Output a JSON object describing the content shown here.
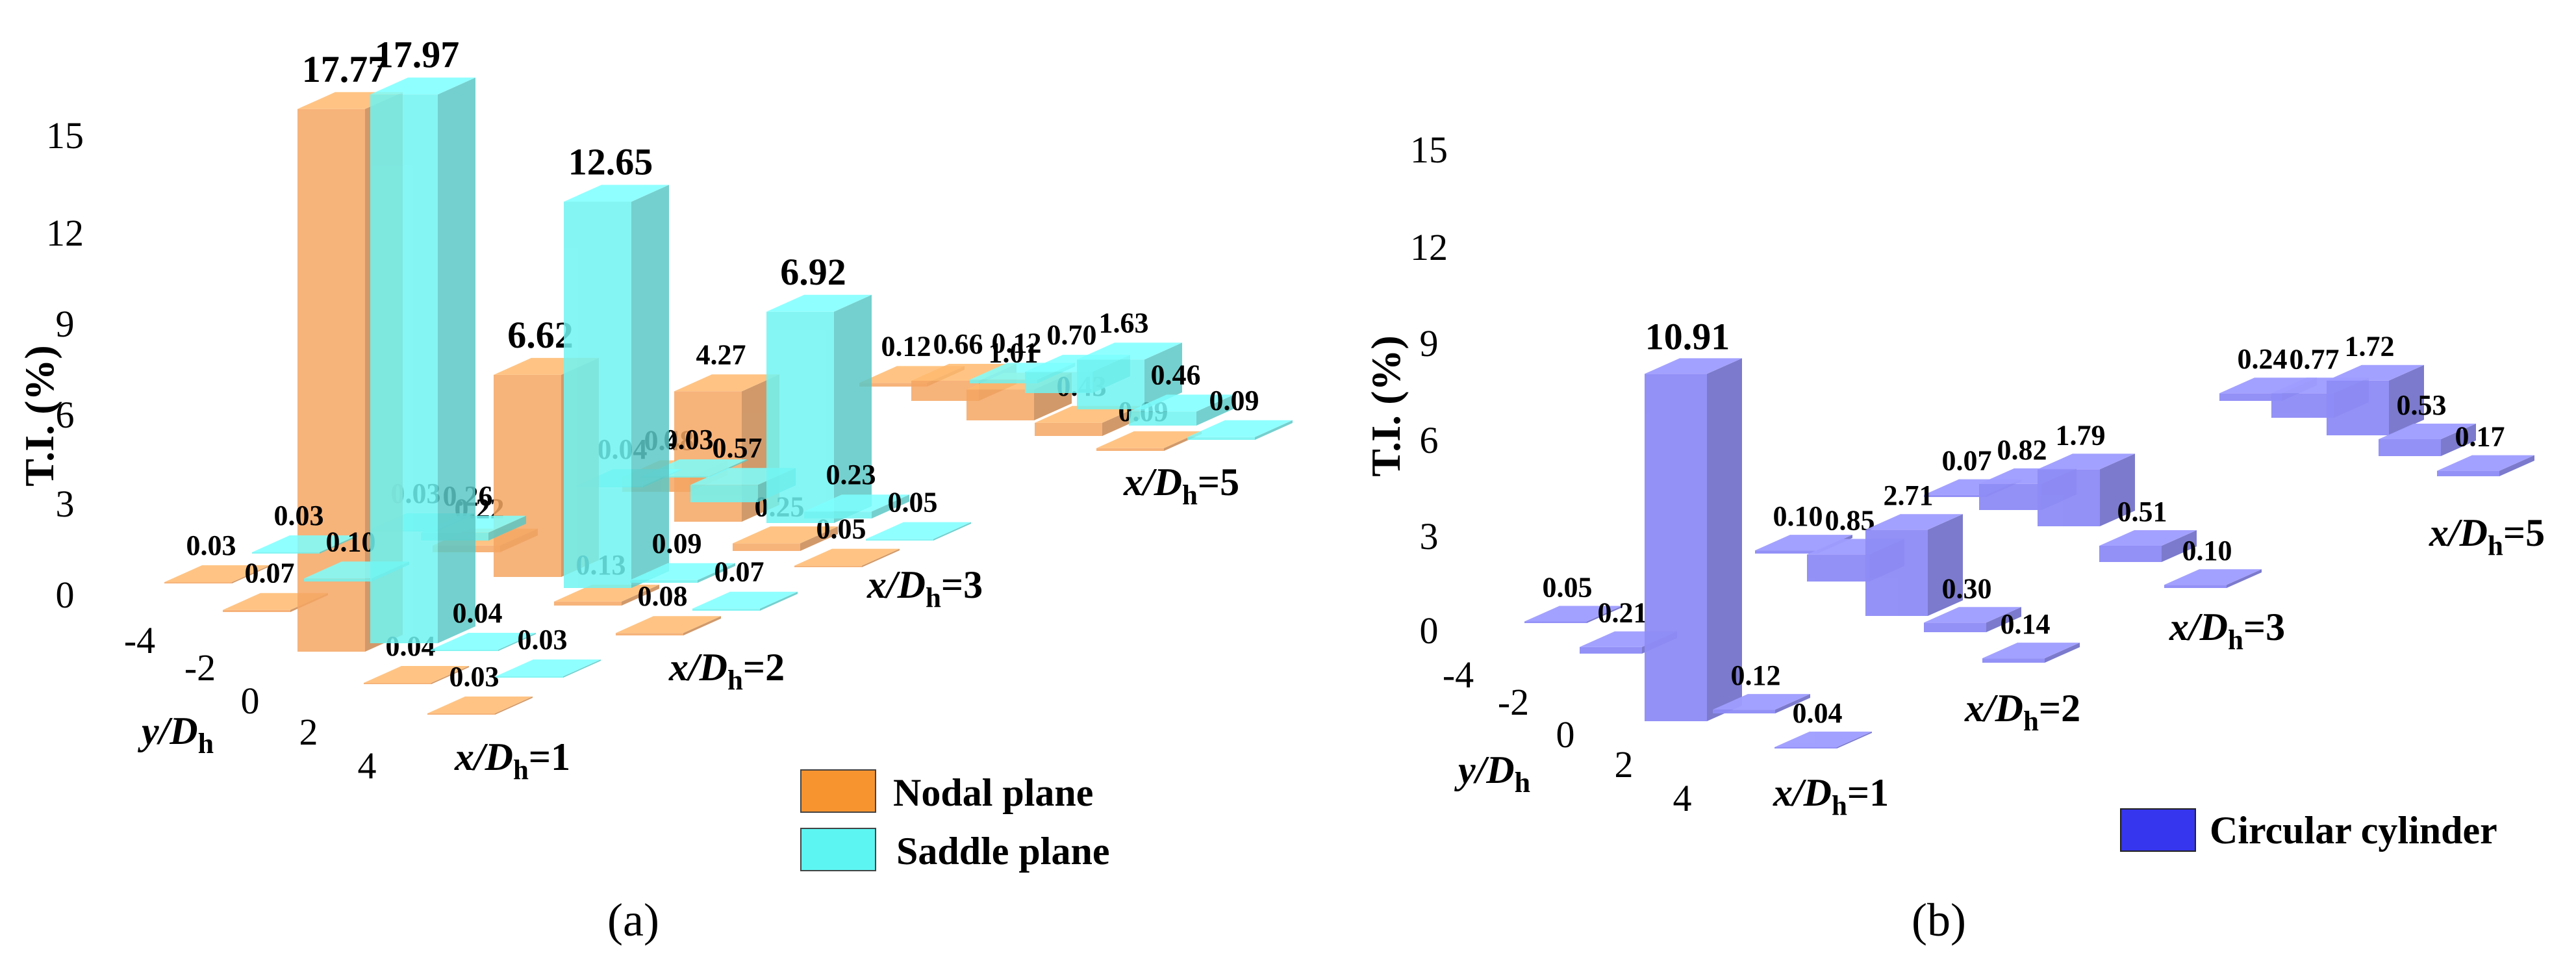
{
  "colors": {
    "nodal": "#f5a663",
    "saddle": "#70f4f2",
    "circular": "#8e8cf6",
    "legend_nodal": "#f7942f",
    "legend_saddle": "#5df5f2",
    "legend_circular": "#3636ee"
  },
  "chart_data": [
    {
      "type": "bar",
      "subtitle": "(a)",
      "zlabel": "T.I. (%)",
      "zticks": [
        "0",
        "3",
        "6",
        "9",
        "12",
        "15"
      ],
      "ylabel_prefix": "y/D",
      "ylabel_sub": "h",
      "yticks": [
        "-4",
        "-2",
        "0",
        "2",
        "4"
      ],
      "group_labels": [
        {
          "prefix": "x/D",
          "sub": "h",
          "suffix": "=1"
        },
        {
          "prefix": "x/D",
          "sub": "h",
          "suffix": "=2"
        },
        {
          "prefix": "x/D",
          "sub": "h",
          "suffix": "=3"
        },
        {
          "prefix": "x/D",
          "sub": "h",
          "suffix": "=5"
        }
      ],
      "legend": [
        "Nodal plane",
        "Saddle plane"
      ],
      "series": [
        {
          "name": "Nodal plane",
          "groups": [
            {
              "x": 1,
              "values": [
                "0.03",
                "0.07",
                "17.77",
                "0.04",
                "0.03"
              ]
            },
            {
              "x": 2,
              "values": [
                "0.22",
                "6.62",
                "0.13",
                "0.08"
              ]
            },
            {
              "x": 3,
              "values": [
                "0.48",
                "4.27",
                "0.25",
                "0.05"
              ]
            },
            {
              "x": 5,
              "values": [
                "0.12",
                "0.66",
                "1.01",
                "0.43",
                "0.09"
              ]
            }
          ]
        },
        {
          "name": "Saddle plane",
          "groups": [
            {
              "x": 1,
              "values": [
                "0.03",
                "0.10",
                "17.97",
                "0.04",
                "0.03"
              ]
            },
            {
              "x": 2,
              "values": [
                "0.03",
                "0.26",
                "12.65",
                "0.09",
                "0.07"
              ]
            },
            {
              "x": 3,
              "values": [
                "0.04",
                "0.03",
                "0.57",
                "6.92",
                "0.23",
                "0.05"
              ]
            },
            {
              "x": 5,
              "values": [
                "0.12",
                "0.70",
                "1.63",
                "0.46",
                "0.09"
              ]
            }
          ]
        }
      ]
    },
    {
      "type": "bar",
      "subtitle": "(b)",
      "zlabel": "T.I. (%)",
      "zticks": [
        "0",
        "3",
        "6",
        "9",
        "12",
        "15"
      ],
      "ylabel_prefix": "y/D",
      "ylabel_sub": "h",
      "yticks": [
        "-4",
        "-2",
        "0",
        "2",
        "4"
      ],
      "group_labels": [
        {
          "prefix": "x/D",
          "sub": "h",
          "suffix": "=1"
        },
        {
          "prefix": "x/D",
          "sub": "h",
          "suffix": "=2"
        },
        {
          "prefix": "x/D",
          "sub": "h",
          "suffix": "=3"
        },
        {
          "prefix": "x/D",
          "sub": "h",
          "suffix": "=5"
        }
      ],
      "legend": [
        "Circular cylinder"
      ],
      "series": [
        {
          "name": "Circular cylinder",
          "groups": [
            {
              "x": 1,
              "values": [
                "0.05",
                "0.21",
                "10.91",
                "0.12",
                "0.04"
              ]
            },
            {
              "x": 2,
              "values": [
                "0.10",
                "0.85",
                "2.71",
                "0.30",
                "0.14"
              ]
            },
            {
              "x": 3,
              "values": [
                "0.07",
                "0.82",
                "1.79",
                "0.51",
                "0.10"
              ]
            },
            {
              "x": 5,
              "values": [
                "0.24",
                "0.77",
                "1.72",
                "0.53",
                "0.17"
              ]
            }
          ]
        }
      ]
    }
  ]
}
